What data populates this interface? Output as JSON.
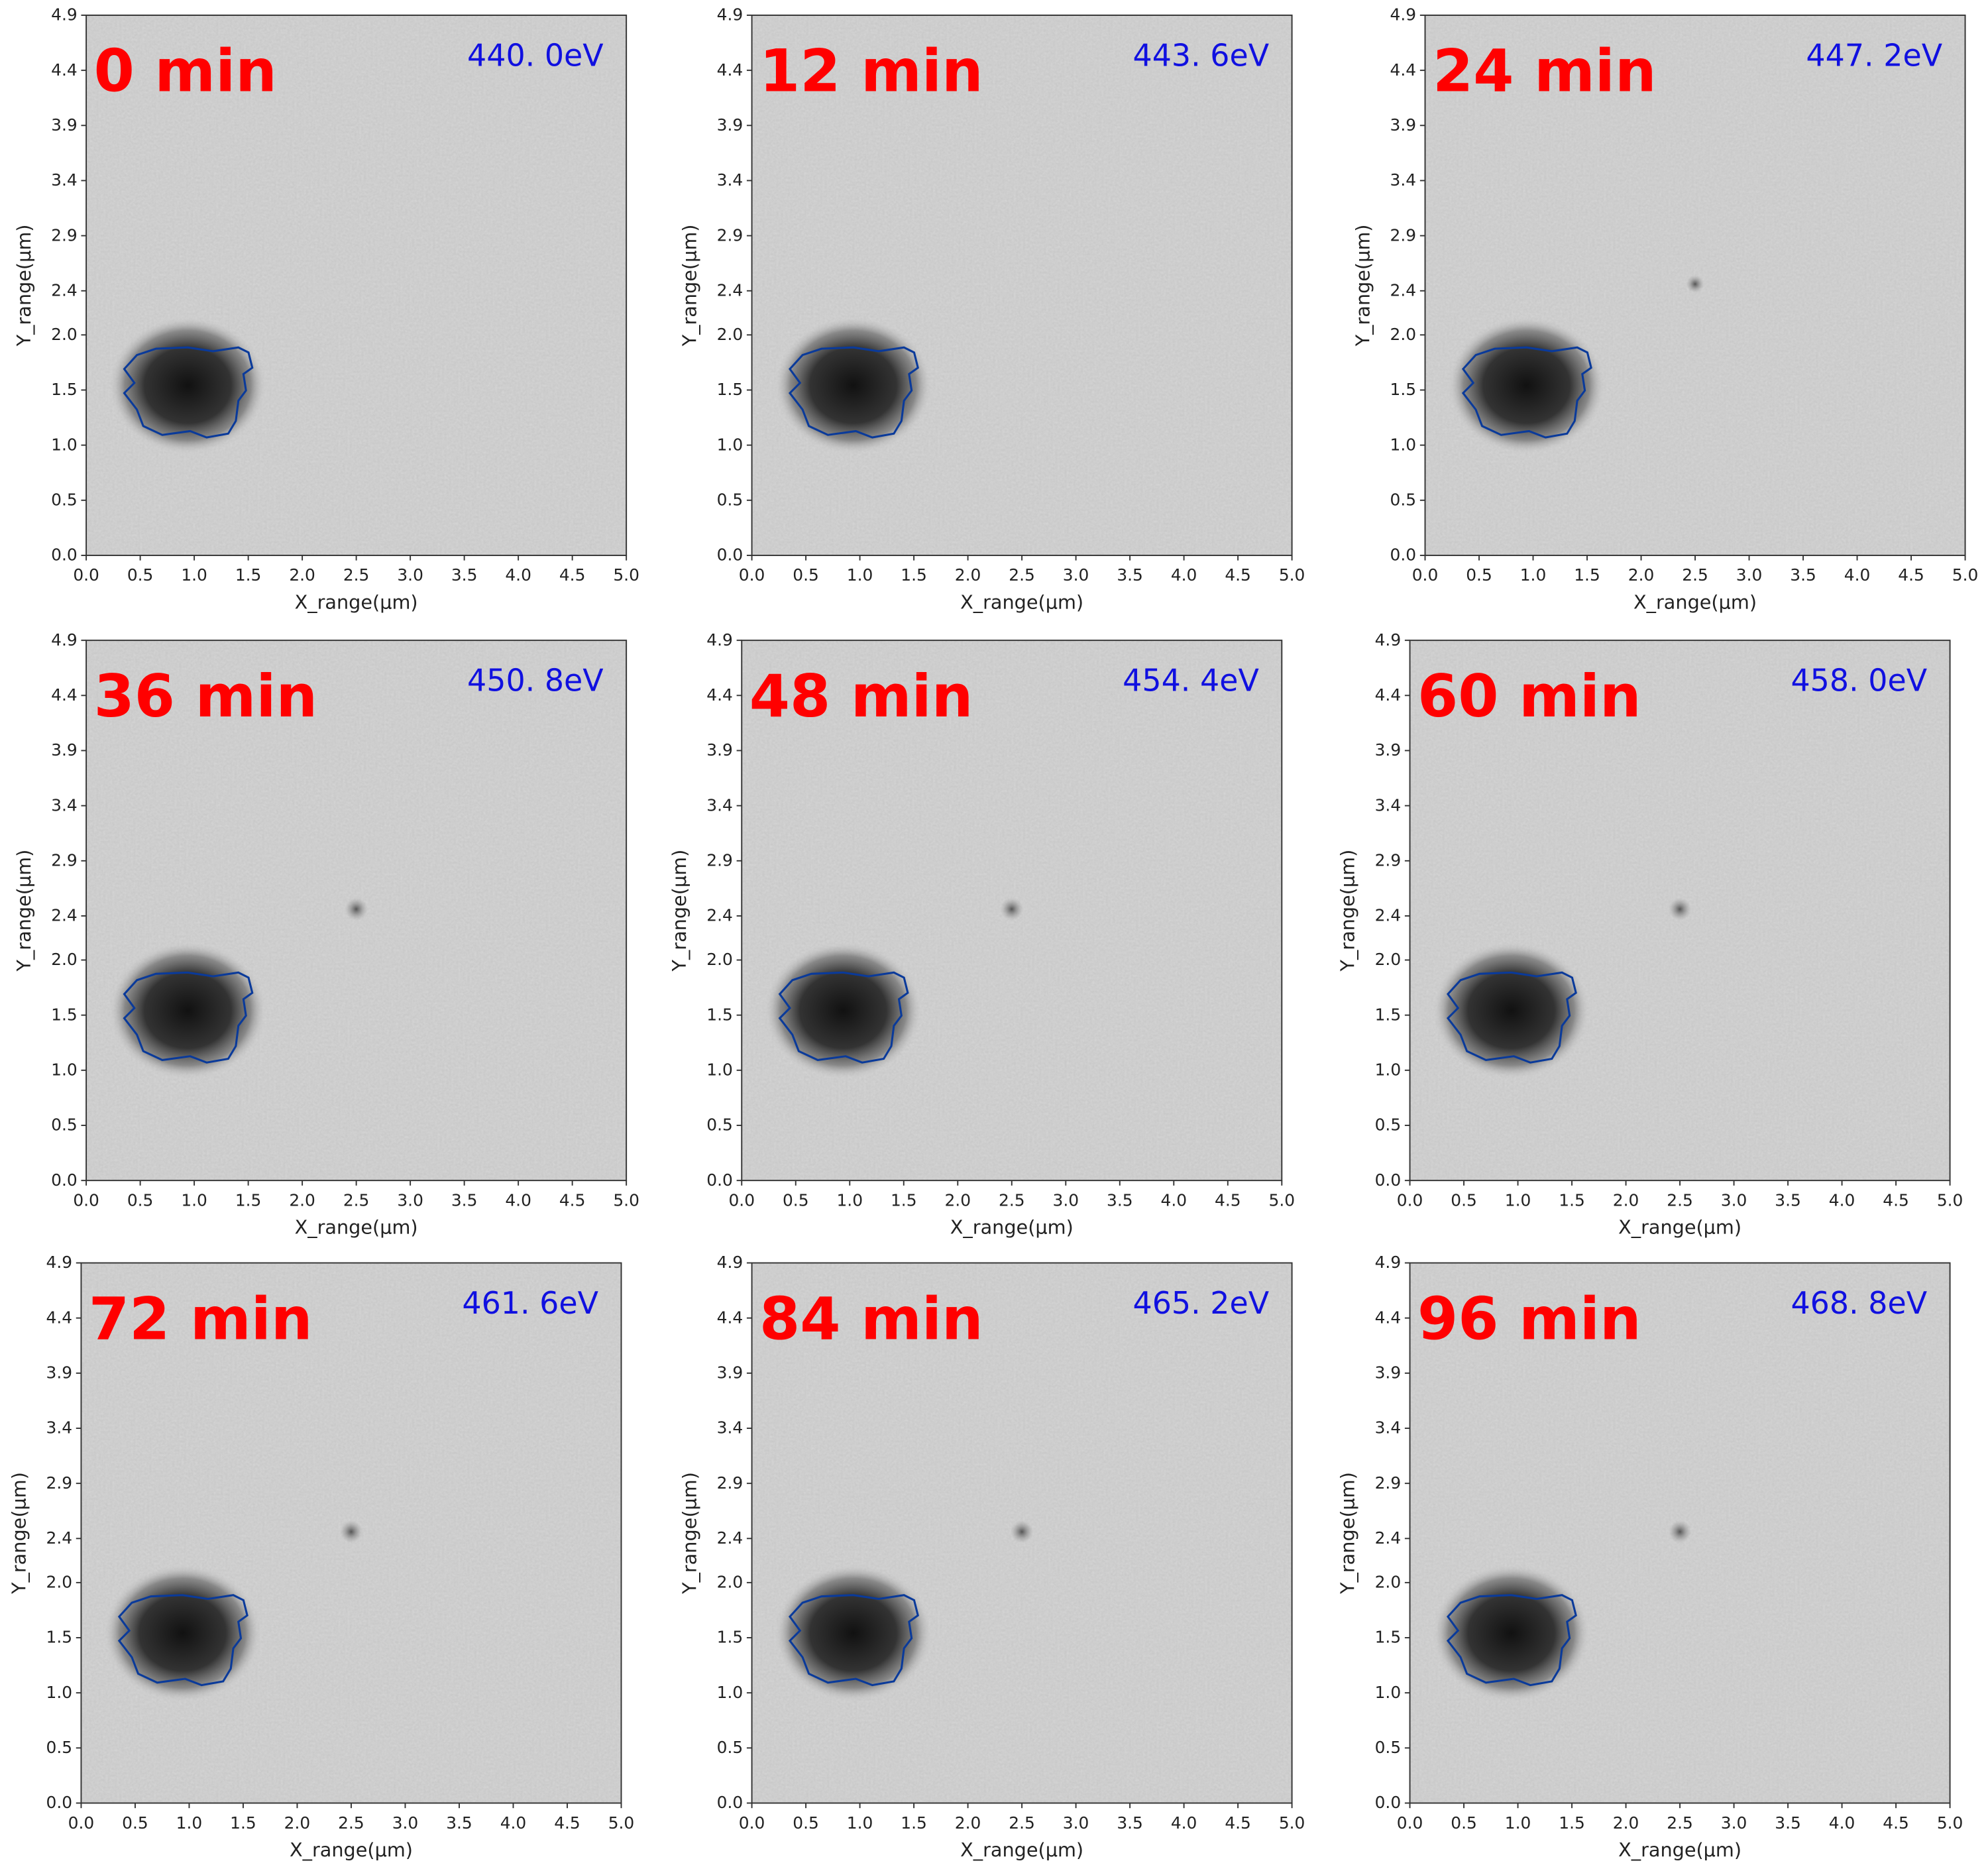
{
  "chart_data": [
    {
      "type": "image",
      "title": "0 min",
      "annotation": "440. 0eV",
      "xlabel": "X_range(μm)",
      "ylabel": "Y_range(μm)",
      "xlim": [
        0,
        5
      ],
      "ylim": [
        0,
        4.9
      ],
      "xticks": [
        {
          "value": 0,
          "label": "0.0"
        },
        {
          "value": 0.5,
          "label": "0.5"
        },
        {
          "value": 1,
          "label": "1.0"
        },
        {
          "value": 1.5,
          "label": "1.5"
        },
        {
          "value": 2,
          "label": "2.0"
        },
        {
          "value": 2.5,
          "label": "2.5"
        },
        {
          "value": 3,
          "label": "3.0"
        },
        {
          "value": 3.5,
          "label": "3.5"
        },
        {
          "value": 4,
          "label": "4.0"
        },
        {
          "value": 4.5,
          "label": "4.5"
        },
        {
          "value": 5,
          "label": "5.0"
        }
      ],
      "yticks": [
        {
          "value": 0,
          "label": "0.0"
        },
        {
          "value": 0.5,
          "label": "0.5"
        },
        {
          "value": 1,
          "label": "1.0"
        },
        {
          "value": 1.5,
          "label": "1.5"
        },
        {
          "value": 2,
          "label": "2.0"
        },
        2.4,
        2.9,
        3.4,
        3.9,
        4.4,
        4.9
      ]
    },
    {
      "type": "image",
      "title": "12 min",
      "annotation": "443. 6eV",
      "xlabel": "X_range(μm)",
      "ylabel": "Y_range(μm)",
      "xlim": [
        0,
        5
      ],
      "ylim": [
        0,
        4.9
      ],
      "xticks": [
        {
          "value": 0,
          "label": "0.0"
        },
        {
          "value": 0.5,
          "label": "0.5"
        },
        {
          "value": 1,
          "label": "1.0"
        },
        {
          "value": 1.5,
          "label": "1.5"
        },
        {
          "value": 2,
          "label": "2.0"
        },
        {
          "value": 2.5,
          "label": "2.5"
        },
        {
          "value": 3,
          "label": "3.0"
        },
        {
          "value": 3.5,
          "label": "3.5"
        },
        {
          "value": 4,
          "label": "4.0"
        },
        {
          "value": 4.5,
          "label": "4.5"
        },
        {
          "value": 5,
          "label": "5.0"
        }
      ],
      "yticks": [
        {
          "value": 0,
          "label": "0.0"
        },
        {
          "value": 0.5,
          "label": "0.5"
        },
        {
          "value": 1,
          "label": "1.0"
        },
        {
          "value": 1.5,
          "label": "1.5"
        },
        {
          "value": 2,
          "label": "2.0"
        },
        2.4,
        2.9,
        3.4,
        3.9,
        4.4,
        4.9
      ]
    },
    {
      "type": "image",
      "title": "24 min",
      "annotation": "447. 2eV",
      "xlabel": "X_range(μm)",
      "ylabel": "Y_range(μm)",
      "xlim": [
        0,
        5
      ],
      "ylim": [
        0,
        4.9
      ],
      "xticks": [
        {
          "value": 0,
          "label": "0.0"
        },
        {
          "value": 0.5,
          "label": "0.5"
        },
        {
          "value": 1,
          "label": "1.0"
        },
        {
          "value": 1.5,
          "label": "1.5"
        },
        {
          "value": 2,
          "label": "2.0"
        },
        {
          "value": 2.5,
          "label": "2.5"
        },
        {
          "value": 3,
          "label": "3.0"
        },
        {
          "value": 3.5,
          "label": "3.5"
        },
        {
          "value": 4,
          "label": "4.0"
        },
        {
          "value": 4.5,
          "label": "4.5"
        },
        {
          "value": 5,
          "label": "5.0"
        }
      ],
      "yticks": [
        {
          "value": 0,
          "label": "0.0"
        },
        {
          "value": 0.5,
          "label": "0.5"
        },
        {
          "value": 1,
          "label": "1.0"
        },
        {
          "value": 1.5,
          "label": "1.5"
        },
        {
          "value": 2,
          "label": "2.0"
        },
        2.4,
        2.9,
        3.4,
        3.9,
        4.4,
        4.9
      ]
    },
    {
      "type": "image",
      "title": "36 min",
      "annotation": "450. 8eV",
      "xlabel": "X_range(μm)",
      "ylabel": "Y_range(μm)",
      "xlim": [
        0,
        5
      ],
      "ylim": [
        0,
        4.9
      ],
      "xticks": [
        {
          "value": 0,
          "label": "0.0"
        },
        {
          "value": 0.5,
          "label": "0.5"
        },
        {
          "value": 1,
          "label": "1.0"
        },
        {
          "value": 1.5,
          "label": "1.5"
        },
        {
          "value": 2,
          "label": "2.0"
        },
        {
          "value": 2.5,
          "label": "2.5"
        },
        {
          "value": 3,
          "label": "3.0"
        },
        {
          "value": 3.5,
          "label": "3.5"
        },
        {
          "value": 4,
          "label": "4.0"
        },
        {
          "value": 4.5,
          "label": "4.5"
        },
        {
          "value": 5,
          "label": "5.0"
        }
      ],
      "yticks": [
        {
          "value": 0,
          "label": "0.0"
        },
        {
          "value": 0.5,
          "label": "0.5"
        },
        {
          "value": 1,
          "label": "1.0"
        },
        {
          "value": 1.5,
          "label": "1.5"
        },
        {
          "value": 2,
          "label": "2.0"
        },
        2.4,
        2.9,
        3.4,
        3.9,
        4.4,
        4.9
      ]
    },
    {
      "type": "image",
      "title": "48 min",
      "annotation": "454. 4eV",
      "xlabel": "X_range(μm)",
      "ylabel": "Y_range(μm)",
      "xlim": [
        0,
        5
      ],
      "ylim": [
        0,
        4.9
      ],
      "xticks": [
        {
          "value": 0,
          "label": "0.0"
        },
        {
          "value": 0.5,
          "label": "0.5"
        },
        {
          "value": 1,
          "label": "1.0"
        },
        {
          "value": 1.5,
          "label": "1.5"
        },
        {
          "value": 2,
          "label": "2.0"
        },
        {
          "value": 2.5,
          "label": "2.5"
        },
        {
          "value": 3,
          "label": "3.0"
        },
        {
          "value": 3.5,
          "label": "3.5"
        },
        {
          "value": 4,
          "label": "4.0"
        },
        {
          "value": 4.5,
          "label": "4.5"
        },
        {
          "value": 5,
          "label": "5.0"
        }
      ],
      "yticks": [
        {
          "value": 0,
          "label": "0.0"
        },
        {
          "value": 0.5,
          "label": "0.5"
        },
        {
          "value": 1,
          "label": "1.0"
        },
        {
          "value": 1.5,
          "label": "1.5"
        },
        {
          "value": 2,
          "label": "2.0"
        },
        2.4,
        2.9,
        3.4,
        3.9,
        4.4,
        4.9
      ]
    },
    {
      "type": "image",
      "title": "60 min",
      "annotation": "458. 0eV",
      "xlabel": "X_range(μm)",
      "ylabel": "Y_range(μm)",
      "xlim": [
        0,
        5
      ],
      "ylim": [
        0,
        4.9
      ],
      "xticks": [
        {
          "value": 0,
          "label": "0.0"
        },
        {
          "value": 0.5,
          "label": "0.5"
        },
        {
          "value": 1,
          "label": "1.0"
        },
        {
          "value": 1.5,
          "label": "1.5"
        },
        {
          "value": 2,
          "label": "2.0"
        },
        {
          "value": 2.5,
          "label": "2.5"
        },
        {
          "value": 3,
          "label": "3.0"
        },
        {
          "value": 3.5,
          "label": "3.5"
        },
        {
          "value": 4,
          "label": "4.0"
        },
        {
          "value": 4.5,
          "label": "4.5"
        },
        {
          "value": 5,
          "label": "5.0"
        }
      ],
      "yticks": [
        {
          "value": 0,
          "label": "0.0"
        },
        {
          "value": 0.5,
          "label": "0.5"
        },
        {
          "value": 1,
          "label": "1.0"
        },
        {
          "value": 1.5,
          "label": "1.5"
        },
        {
          "value": 2,
          "label": "2.0"
        },
        2.4,
        2.9,
        3.4,
        3.9,
        4.4,
        4.9
      ]
    },
    {
      "type": "image",
      "title": "72 min",
      "annotation": "461. 6eV",
      "xlabel": "X_range(μm)",
      "ylabel": "Y_range(μm)",
      "xlim": [
        0,
        5
      ],
      "ylim": [
        0,
        4.9
      ],
      "xticks": [
        {
          "value": 0,
          "label": "0.0"
        },
        {
          "value": 0.5,
          "label": "0.5"
        },
        {
          "value": 1,
          "label": "1.0"
        },
        {
          "value": 1.5,
          "label": "1.5"
        },
        {
          "value": 2,
          "label": "2.0"
        },
        {
          "value": 2.5,
          "label": "2.5"
        },
        {
          "value": 3,
          "label": "3.0"
        },
        {
          "value": 3.5,
          "label": "3.5"
        },
        {
          "value": 4,
          "label": "4.0"
        },
        {
          "value": 4.5,
          "label": "4.5"
        },
        {
          "value": 5,
          "label": "5.0"
        }
      ],
      "yticks": [
        {
          "value": 0,
          "label": "0.0"
        },
        {
          "value": 0.5,
          "label": "0.5"
        },
        {
          "value": 1,
          "label": "1.0"
        },
        {
          "value": 1.5,
          "label": "1.5"
        },
        {
          "value": 2,
          "label": "2.0"
        },
        2.4,
        2.9,
        3.4,
        3.9,
        4.4,
        4.9
      ]
    },
    {
      "type": "image",
      "title": "84 min",
      "annotation": "465. 2eV",
      "xlabel": "X_range(μm)",
      "ylabel": "Y_range(μm)",
      "xlim": [
        0,
        5
      ],
      "ylim": [
        0,
        4.9
      ],
      "xticks": [
        {
          "value": 0,
          "label": "0.0"
        },
        {
          "value": 0.5,
          "label": "0.5"
        },
        {
          "value": 1,
          "label": "1.0"
        },
        {
          "value": 1.5,
          "label": "1.5"
        },
        {
          "value": 2,
          "label": "2.0"
        },
        {
          "value": 2.5,
          "label": "2.5"
        },
        {
          "value": 3,
          "label": "3.0"
        },
        {
          "value": 3.5,
          "label": "3.5"
        },
        {
          "value": 4,
          "label": "4.0"
        },
        {
          "value": 4.5,
          "label": "4.5"
        },
        {
          "value": 5,
          "label": "5.0"
        }
      ],
      "yticks": [
        {
          "value": 0,
          "label": "0.0"
        },
        {
          "value": 0.5,
          "label": "0.5"
        },
        {
          "value": 1,
          "label": "1.0"
        },
        {
          "value": 1.5,
          "label": "1.5"
        },
        {
          "value": 2,
          "label": "2.0"
        },
        2.4,
        2.9,
        3.4,
        3.9,
        4.4,
        4.9
      ]
    },
    {
      "type": "image",
      "title": "96 min",
      "annotation": "468. 8eV",
      "xlabel": "X_range(μm)",
      "ylabel": "Y_range(μm)",
      "xlim": [
        0,
        5
      ],
      "ylim": [
        0,
        4.9
      ],
      "xticks": [
        {
          "value": 0,
          "label": "0.0"
        },
        {
          "value": 0.5,
          "label": "0.5"
        },
        {
          "value": 1,
          "label": "1.0"
        },
        {
          "value": 1.5,
          "label": "1.5"
        },
        {
          "value": 2,
          "label": "2.0"
        },
        {
          "value": 2.5,
          "label": "2.5"
        },
        {
          "value": 3,
          "label": "3.0"
        },
        {
          "value": 3.5,
          "label": "3.5"
        },
        {
          "value": 4,
          "label": "4.0"
        },
        {
          "value": 4.5,
          "label": "4.5"
        },
        {
          "value": 5,
          "label": "5.0"
        }
      ],
      "yticks": [
        {
          "value": 0,
          "label": "0.0"
        },
        {
          "value": 0.5,
          "label": "0.5"
        },
        {
          "value": 1,
          "label": "1.0"
        },
        {
          "value": 1.5,
          "label": "1.5"
        },
        {
          "value": 2,
          "label": "2.0"
        },
        2.4,
        2.9,
        3.4,
        3.9,
        4.4,
        4.9
      ]
    }
  ]
}
